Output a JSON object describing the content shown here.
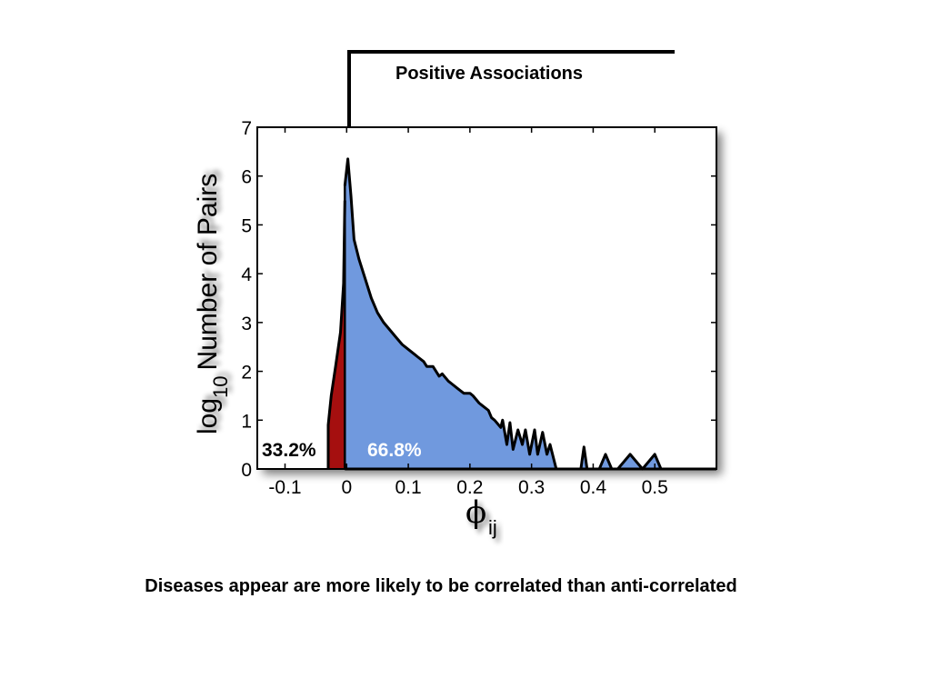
{
  "bracket_label": "Positive Associations",
  "caption": "Diseases appear are more likely to be correlated than anti-correlated",
  "colors": {
    "negative_fill": "#a50f0f",
    "positive_fill": "#7099de",
    "outline": "#000000"
  },
  "chart_data": {
    "type": "area",
    "title": "",
    "xlabel_symbol": "ϕ",
    "xlabel_sub": "ij",
    "ylabel_prefix": "log",
    "ylabel_sub": "10",
    "ylabel_main": "Number of Pairs",
    "xlim": [
      -0.145,
      0.6
    ],
    "ylim": [
      0,
      7
    ],
    "xticks": [
      -0.1,
      0,
      0.1,
      0.2,
      0.3,
      0.4,
      0.5
    ],
    "xtick_labels": [
      "-0.1",
      "0",
      "0.1",
      "0.2",
      "0.3",
      "0.4",
      "0.5"
    ],
    "yticks": [
      0,
      1,
      2,
      3,
      4,
      5,
      6,
      7
    ],
    "ytick_labels": [
      "0",
      "1",
      "2",
      "3",
      "4",
      "5",
      "6",
      "7"
    ],
    "annotations": [
      {
        "text": "33.2%",
        "region": "negative"
      },
      {
        "text": "66.8%",
        "region": "positive"
      }
    ],
    "series": [
      {
        "region": "negative",
        "x": [
          -0.03,
          -0.03,
          -0.025,
          -0.018,
          -0.01,
          -0.005,
          -0.003
        ],
        "y": [
          0,
          0.9,
          1.5,
          2.1,
          2.8,
          3.8,
          5.5
        ]
      },
      {
        "region": "positive",
        "x": [
          -0.003,
          0.002,
          0.007,
          0.012,
          0.02,
          0.03,
          0.04,
          0.05,
          0.06,
          0.07,
          0.08,
          0.09,
          0.1,
          0.11,
          0.115,
          0.125,
          0.13,
          0.14,
          0.15,
          0.155,
          0.165,
          0.17,
          0.18,
          0.19,
          0.2,
          0.205,
          0.215,
          0.22,
          0.23,
          0.235,
          0.24,
          0.25,
          0.253,
          0.26,
          0.265,
          0.27,
          0.278,
          0.285,
          0.29,
          0.297,
          0.305,
          0.31,
          0.318,
          0.325,
          0.33,
          0.34,
          0.345,
          0.355,
          0.36,
          0.38,
          0.385,
          0.39,
          0.4,
          0.41,
          0.42,
          0.43,
          0.44,
          0.46,
          0.48,
          0.5,
          0.51,
          0.52,
          0.6
        ],
        "y": [
          5.8,
          6.35,
          5.6,
          4.7,
          4.3,
          3.9,
          3.5,
          3.2,
          3.0,
          2.85,
          2.7,
          2.55,
          2.45,
          2.35,
          2.3,
          2.2,
          2.1,
          2.1,
          1.9,
          1.95,
          1.8,
          1.75,
          1.65,
          1.55,
          1.55,
          1.5,
          1.35,
          1.3,
          1.2,
          1.05,
          1.0,
          0.85,
          1.0,
          0.5,
          0.95,
          0.4,
          0.8,
          0.5,
          0.8,
          0.3,
          0.8,
          0.3,
          0.75,
          0.3,
          0.5,
          0.0,
          0.0,
          0.0,
          0.0,
          0.0,
          0.45,
          0.0,
          0.0,
          0.0,
          0.3,
          0.0,
          0.0,
          0.3,
          0.0,
          0.3,
          0.0,
          0.0,
          0.0
        ]
      }
    ]
  }
}
